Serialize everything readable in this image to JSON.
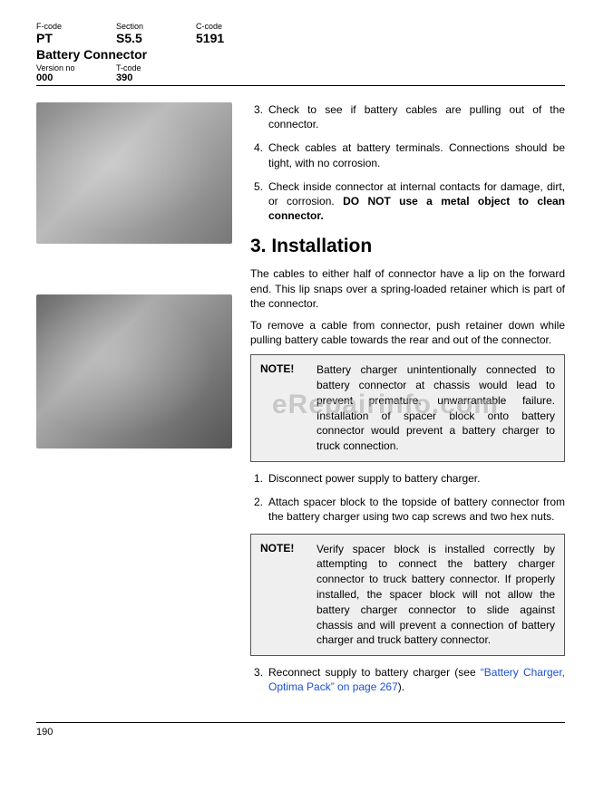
{
  "header": {
    "fcode_label": "F-code",
    "fcode": "PT",
    "section_label": "Section",
    "section": "S5.5",
    "ccode_label": "C-code",
    "ccode": "5191",
    "title": "Battery Connector",
    "version_label": "Version no",
    "version": "000",
    "tcode_label": "T-code",
    "tcode": "390"
  },
  "top_steps": {
    "s3_num": "3.",
    "s3": "Check to see if battery cables are pulling out of the connector.",
    "s4_num": "4.",
    "s4": "Check cables at battery terminals. Connections should be tight, with no corrosion.",
    "s5_num": "5.",
    "s5_a": "Check inside connector at internal contacts for damage, dirt, or corrosion. ",
    "s5_b": "DO NOT use a metal object to clean connector."
  },
  "section": {
    "heading": "3. Installation",
    "p1": "The cables to either half of connector have a lip on the forward end. This lip snaps over a spring-loaded retainer which is part of the connector.",
    "p2": "To remove a cable from connector, push retainer down while pulling battery cable towards the rear and out of the connector."
  },
  "note1": {
    "label": "NOTE!",
    "text": "Battery charger unintentionally connected to battery connector at chassis would lead to prevent premature, unwarrantable failure. Installation of spacer block onto battery connector would prevent a battery charger to truck connection."
  },
  "mid_steps": {
    "s1_num": "1.",
    "s1": "Disconnect power supply to battery charger.",
    "s2_num": "2.",
    "s2": "Attach spacer block to the topside of battery connector from the battery charger using two cap screws and two hex nuts."
  },
  "note2": {
    "label": "NOTE!",
    "text": "Verify spacer block is installed correctly by attempting to connect the battery charger connector to truck battery connector. If properly installed, the spacer block will not allow the battery charger connector to slide against chassis and will prevent a connection of battery charger and truck battery connector."
  },
  "end_steps": {
    "s3_num": "3.",
    "s3_a": "Reconnect supply to battery charger (see ",
    "s3_link": "“Battery Charger, Optima Pack” on page 267",
    "s3_b": ")."
  },
  "footer": {
    "page": "190"
  },
  "watermark": {
    "main": "eRepairinfo.com",
    "sub": ""
  }
}
